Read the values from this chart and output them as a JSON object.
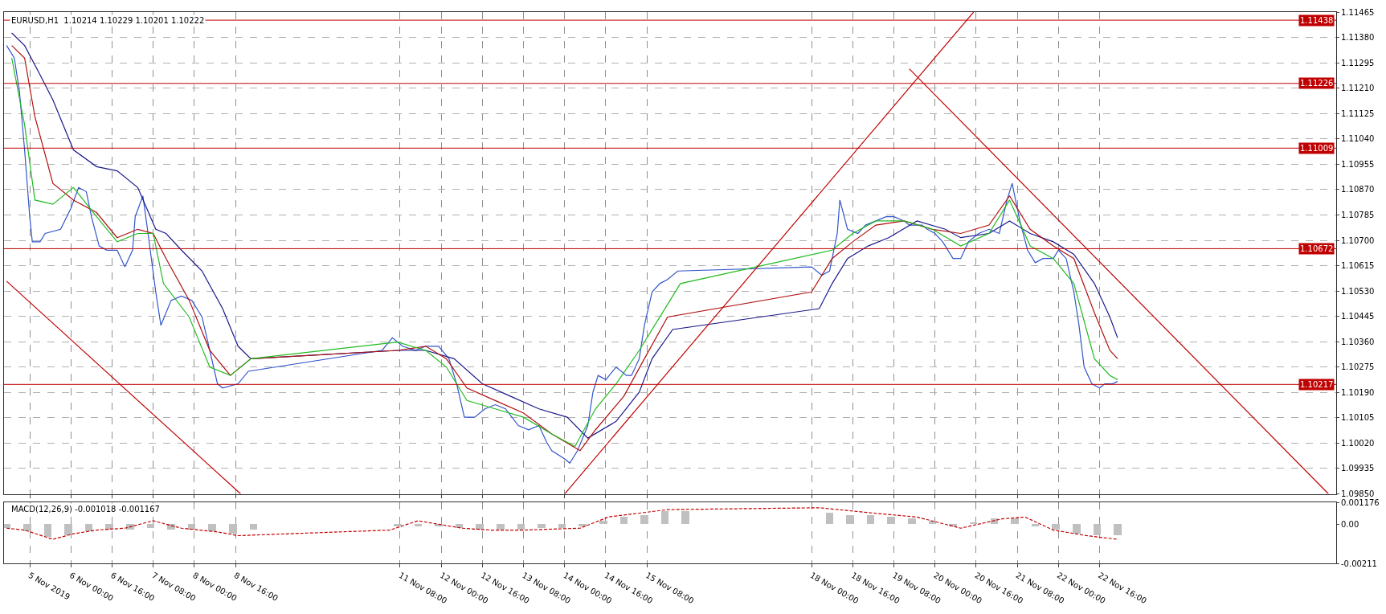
{
  "chart_data": [
    {
      "type": "line",
      "title": "EURUSD,H1  1.10214 1.10229 1.10201 1.10222",
      "grid": true,
      "tick_labels": "y",
      "xlim": [
        "2019-11-04T22:00",
        "2019-11-26T12:00"
      ],
      "xticks": [
        {
          "value": "2019-11-05T08:00",
          "label": null
        },
        {
          "value": "2019-11-06T00:00",
          "label": null
        },
        {
          "value": "2019-11-06T16:00",
          "label": null
        },
        {
          "value": "2019-11-07T08:00",
          "label": null
        },
        {
          "value": "2019-11-08T00:00",
          "label": null
        },
        {
          "value": "2019-11-08T16:00",
          "label": null
        },
        {
          "value": "2019-11-11T08:00",
          "label": null
        },
        {
          "value": "2019-11-12T00:00",
          "label": null
        },
        {
          "value": "2019-11-12T16:00",
          "label": null
        },
        {
          "value": "2019-11-13T08:00",
          "label": null
        },
        {
          "value": "2019-11-14T00:00",
          "label": null
        },
        {
          "value": "2019-11-14T16:00",
          "label": null
        },
        {
          "value": "2019-11-15T08:00",
          "label": null
        },
        {
          "value": "2019-11-18T00:00",
          "label": null
        },
        {
          "value": "2019-11-18T16:00",
          "label": null
        },
        {
          "value": "2019-11-19T08:00",
          "label": null
        },
        {
          "value": "2019-11-20T00:00",
          "label": null
        },
        {
          "value": "2019-11-20T16:00",
          "label": null
        },
        {
          "value": "2019-11-21T08:00",
          "label": null
        },
        {
          "value": "2019-11-22T00:00",
          "label": null
        },
        {
          "value": "2019-11-22T16:00",
          "label": null
        }
      ],
      "ylim": [
        1.0985,
        1.11465
      ],
      "yticks": [
        {
          "value": 1.11465,
          "label": "1.11465"
        },
        {
          "value": 1.1138,
          "label": "1.11380"
        },
        {
          "value": 1.11295,
          "label": "1.11295"
        },
        {
          "value": 1.1121,
          "label": "1.11210"
        },
        {
          "value": 1.11125,
          "label": "1.11125"
        },
        {
          "value": 1.1104,
          "label": "1.11040"
        },
        {
          "value": 1.10955,
          "label": "1.10955"
        },
        {
          "value": 1.1087,
          "label": "1.10870"
        },
        {
          "value": 1.10785,
          "label": "1.10785"
        },
        {
          "value": 1.107,
          "label": "1.10700"
        },
        {
          "value": 1.10615,
          "label": "1.10615"
        },
        {
          "value": 1.1053,
          "label": "1.10530"
        },
        {
          "value": 1.10445,
          "label": "1.10445"
        },
        {
          "value": 1.1036,
          "label": "1.10360"
        },
        {
          "value": 1.10275,
          "label": "1.10275"
        },
        {
          "value": 1.1019,
          "label": "1.10190"
        },
        {
          "value": 1.10105,
          "label": "1.10105"
        },
        {
          "value": 1.1002,
          "label": "1.10020"
        },
        {
          "value": 1.09935,
          "label": "1.09935"
        },
        {
          "value": 1.0985,
          "label": "1.09850"
        }
      ],
      "ref_lines": [
        {
          "axis": "y",
          "value": 1.11438,
          "label": "1.11438",
          "color": "#c00000"
        },
        {
          "axis": "y",
          "value": 1.11226,
          "label": "1.11226",
          "color": "#c00000"
        },
        {
          "axis": "y",
          "value": 1.11009,
          "label": "1.11009",
          "color": "#c00000"
        },
        {
          "axis": "y",
          "value": 1.10672,
          "label": "1.10672",
          "color": "#c00000"
        },
        {
          "axis": "y",
          "value": 1.10217,
          "label": "1.10217",
          "color": "#c00000"
        }
      ],
      "series": [
        {
          "color": "#3355cc",
          "x": [
            "2019-11-04T23:00",
            "2019-11-05T02:00",
            "2019-11-05T04:00",
            "2019-11-05T06:00",
            "2019-11-05T08:00",
            "2019-11-05T09:00",
            "2019-11-05T12:00",
            "2019-11-05T14:00",
            "2019-11-05T20:00",
            "2019-11-06T00:00",
            "2019-11-06T03:00",
            "2019-11-06T06:00",
            "2019-11-06T08:00",
            "2019-11-06T11:00",
            "2019-11-06T14:00",
            "2019-11-06T18:00",
            "2019-11-06T21:00",
            "2019-11-07T00:00",
            "2019-11-07T01:00",
            "2019-11-07T04:00",
            "2019-11-07T06:00",
            "2019-11-07T09:00",
            "2019-11-07T11:00",
            "2019-11-07T15:00",
            "2019-11-07T19:00",
            "2019-11-07T23:00",
            "2019-11-08T03:00",
            "2019-11-08T06:00",
            "2019-11-08T09:00",
            "2019-11-08T11:00",
            "2019-11-08T17:00",
            "2019-11-08T21:00",
            "2019-11-11T01:00",
            "2019-11-11T05:00",
            "2019-11-11T09:00",
            "2019-11-11T14:00",
            "2019-11-11T18:00",
            "2019-11-11T23:00",
            "2019-11-12T03:00",
            "2019-11-12T06:00",
            "2019-11-12T09:00",
            "2019-11-12T13:00",
            "2019-11-12T17:00",
            "2019-11-12T21:00",
            "2019-11-13T01:00",
            "2019-11-13T06:00",
            "2019-11-13T10:00",
            "2019-11-13T14:00",
            "2019-11-13T17:00",
            "2019-11-13T19:00",
            "2019-11-14T00:00",
            "2019-11-14T02:00",
            "2019-11-14T05:00",
            "2019-11-14T09:00",
            "2019-11-14T11:00",
            "2019-11-14T13:00",
            "2019-11-14T16:00",
            "2019-11-14T20:00",
            "2019-11-15T00:00",
            "2019-11-15T02:00",
            "2019-11-15T05:00",
            "2019-11-15T07:00",
            "2019-11-15T10:00",
            "2019-11-15T13:00",
            "2019-11-15T16:00",
            "2019-11-15T20:00",
            "2019-11-18T00:00",
            "2019-11-18T04:00",
            "2019-11-18T07:00",
            "2019-11-18T10:00",
            "2019-11-18T11:00",
            "2019-11-18T14:00",
            "2019-11-18T18:00",
            "2019-11-18T21:00",
            "2019-11-19T01:00",
            "2019-11-19T05:00",
            "2019-11-19T08:00",
            "2019-11-19T12:00",
            "2019-11-19T14:00",
            "2019-11-19T19:00",
            "2019-11-19T21:00",
            "2019-11-20T00:00",
            "2019-11-20T03:00",
            "2019-11-20T07:00",
            "2019-11-20T10:00",
            "2019-11-20T13:00",
            "2019-11-20T17:00",
            "2019-11-20T21:00",
            "2019-11-21T01:00",
            "2019-11-21T04:00",
            "2019-11-21T06:00",
            "2019-11-21T09:00",
            "2019-11-21T12:00",
            "2019-11-21T15:00",
            "2019-11-21T18:00",
            "2019-11-21T22:00",
            "2019-11-22T00:00",
            "2019-11-22T03:00",
            "2019-11-22T06:00",
            "2019-11-22T08:00",
            "2019-11-22T10:00",
            "2019-11-22T13:00",
            "2019-11-22T16:00",
            "2019-11-22T18:00",
            "2019-11-22T21:00",
            "2019-11-22T23:00"
          ],
          "values": [
            1.11353,
            1.11311,
            1.11199,
            1.11003,
            1.10779,
            1.10695,
            1.10695,
            1.10723,
            1.10737,
            1.10807,
            1.10877,
            1.10863,
            1.10779,
            1.10681,
            1.10667,
            1.10667,
            1.10611,
            1.10667,
            1.10779,
            1.10849,
            1.10723,
            1.10527,
            1.10415,
            1.10499,
            1.10513,
            1.10499,
            1.10443,
            1.10331,
            1.10219,
            1.10205,
            1.10219,
            1.10261,
            1.10331,
            1.10373,
            1.10345,
            1.10331,
            1.10345,
            1.10345,
            1.10303,
            1.10219,
            1.10107,
            1.10107,
            1.10135,
            1.10149,
            1.10135,
            1.10079,
            1.10065,
            1.10079,
            1.10023,
            1.09995,
            1.09967,
            1.09953,
            1.09995,
            1.10079,
            1.10191,
            1.10247,
            1.10233,
            1.10275,
            1.10247,
            1.10247,
            1.10303,
            1.10415,
            1.10527,
            1.10555,
            1.10569,
            1.10597,
            1.10611,
            1.10583,
            1.10597,
            1.10723,
            1.10835,
            1.10737,
            1.10723,
            1.10751,
            1.10765,
            1.10779,
            1.10779,
            1.10765,
            1.10751,
            1.10751,
            1.10737,
            1.10723,
            1.10695,
            1.10639,
            1.10639,
            1.10695,
            1.10723,
            1.10737,
            1.10723,
            1.10835,
            1.10891,
            1.10765,
            1.10667,
            1.10625,
            1.10639,
            1.10639,
            1.10667,
            1.10639,
            1.10527,
            1.10415,
            1.10275,
            1.10219,
            1.10205,
            1.10219,
            1.10219,
            1.10227
          ]
        },
        {
          "color": "#1a1a8c",
          "x": [
            "2019-11-05T01:00",
            "2019-11-05T06:00",
            "2019-11-05T12:00",
            "2019-11-05T17:00",
            "2019-11-06T01:00",
            "2019-11-06T10:00",
            "2019-11-06T18:00",
            "2019-11-07T02:00",
            "2019-11-07T09:00",
            "2019-11-07T13:00",
            "2019-11-07T19:00",
            "2019-11-08T03:00",
            "2019-11-08T11:00",
            "2019-11-08T17:00",
            "2019-11-08T22:00",
            "2019-11-11T07:00",
            "2019-11-11T18:00",
            "2019-11-12T05:00",
            "2019-11-12T16:00",
            "2019-11-13T03:00",
            "2019-11-13T14:00",
            "2019-11-14T01:00",
            "2019-11-14T09:00",
            "2019-11-14T20:00",
            "2019-11-15T05:00",
            "2019-11-15T10:00",
            "2019-11-15T18:00",
            "2019-11-18T03:00",
            "2019-11-18T08:00",
            "2019-11-18T14:00",
            "2019-11-18T22:00",
            "2019-11-19T06:00",
            "2019-11-19T17:00",
            "2019-11-20T04:00",
            "2019-11-20T10:00",
            "2019-11-20T21:00",
            "2019-11-21T05:00",
            "2019-11-21T13:00",
            "2019-11-21T22:00",
            "2019-11-22T06:00",
            "2019-11-22T14:00",
            "2019-11-22T20:00",
            "2019-11-22T23:00"
          ],
          "values": [
            1.11395,
            1.11353,
            1.11255,
            1.11171,
            1.11003,
            1.10947,
            1.10933,
            1.10877,
            1.10737,
            1.10723,
            1.10667,
            1.10597,
            1.10471,
            1.10345,
            1.10303,
            1.10331,
            1.10331,
            1.10303,
            1.10219,
            1.10177,
            1.10135,
            1.10107,
            1.10037,
            1.10093,
            1.10191,
            1.10303,
            1.10401,
            1.10471,
            1.10555,
            1.10639,
            1.10681,
            1.10709,
            1.10765,
            1.10737,
            1.10709,
            1.10723,
            1.10765,
            1.10723,
            1.10695,
            1.10653,
            1.10555,
            1.10443,
            1.10373
          ]
        },
        {
          "color": "#b01010",
          "x": [
            "2019-11-05T01:00",
            "2019-11-05T06:00",
            "2019-11-05T10:00",
            "2019-11-05T17:00",
            "2019-11-06T01:00",
            "2019-11-06T10:00",
            "2019-11-06T18:00",
            "2019-11-07T02:00",
            "2019-11-07T08:00",
            "2019-11-07T13:00",
            "2019-11-07T22:00",
            "2019-11-08T06:00",
            "2019-11-08T14:00",
            "2019-11-08T22:00",
            "2019-11-11T07:00",
            "2019-11-11T18:00",
            "2019-11-12T02:00",
            "2019-11-12T10:00",
            "2019-11-12T21:00",
            "2019-11-13T08:00",
            "2019-11-13T19:00",
            "2019-11-14T06:00",
            "2019-11-14T12:00",
            "2019-11-14T23:00",
            "2019-11-15T07:00",
            "2019-11-15T16:00",
            "2019-11-18T00:00",
            "2019-11-18T08:00",
            "2019-11-18T16:00",
            "2019-11-19T01:00",
            "2019-11-19T12:00",
            "2019-11-19T23:00",
            "2019-11-20T10:00",
            "2019-11-20T21:00",
            "2019-11-21T05:00",
            "2019-11-21T13:00",
            "2019-11-21T22:00",
            "2019-11-22T06:00",
            "2019-11-22T14:00",
            "2019-11-22T20:00",
            "2019-11-22T23:00"
          ],
          "values": [
            1.11353,
            1.11311,
            1.11115,
            1.10891,
            1.10835,
            1.10793,
            1.10709,
            1.10737,
            1.10723,
            1.10639,
            1.10499,
            1.10331,
            1.10247,
            1.10303,
            1.10331,
            1.10345,
            1.10303,
            1.10205,
            1.10163,
            1.10121,
            1.10051,
            1.09995,
            1.10065,
            1.10177,
            1.10303,
            1.10443,
            1.10527,
            1.10639,
            1.10695,
            1.10751,
            1.10765,
            1.10737,
            1.10723,
            1.10751,
            1.10849,
            1.10737,
            1.10681,
            1.10639,
            1.10457,
            1.10331,
            1.10303
          ]
        },
        {
          "color": "#22bb22",
          "x": [
            "2019-11-05T01:00",
            "2019-11-05T06:00",
            "2019-11-05T10:00",
            "2019-11-05T17:00",
            "2019-11-06T01:00",
            "2019-11-06T10:00",
            "2019-11-06T18:00",
            "2019-11-07T02:00",
            "2019-11-07T08:00",
            "2019-11-07T12:00",
            "2019-11-07T22:00",
            "2019-11-08T06:00",
            "2019-11-08T14:00",
            "2019-11-08T22:00",
            "2019-11-11T07:00",
            "2019-11-11T18:00",
            "2019-11-12T02:00",
            "2019-11-12T10:00",
            "2019-11-12T21:00",
            "2019-11-13T08:00",
            "2019-11-13T19:00",
            "2019-11-14T04:00",
            "2019-11-14T12:00",
            "2019-11-14T20:00",
            "2019-11-15T05:00",
            "2019-11-15T13:00",
            "2019-11-15T21:00",
            "2019-11-18T08:00",
            "2019-11-18T16:00",
            "2019-11-19T01:00",
            "2019-11-19T12:00",
            "2019-11-19T23:00",
            "2019-11-20T10:00",
            "2019-11-20T21:00",
            "2019-11-21T05:00",
            "2019-11-21T13:00",
            "2019-11-21T22:00",
            "2019-11-22T06:00",
            "2019-11-22T14:00",
            "2019-11-22T20:00",
            "2019-11-22T23:00"
          ],
          "values": [
            1.11311,
            1.11087,
            1.10835,
            1.10821,
            1.10877,
            1.10779,
            1.10695,
            1.10723,
            1.10723,
            1.10555,
            1.10443,
            1.10275,
            1.10247,
            1.10303,
            1.10359,
            1.10331,
            1.10275,
            1.10163,
            1.10135,
            1.10107,
            1.10051,
            1.10009,
            1.10135,
            1.10219,
            1.10331,
            1.10443,
            1.10555,
            1.10667,
            1.10723,
            1.10765,
            1.10765,
            1.10737,
            1.10681,
            1.10723,
            1.10835,
            1.10681,
            1.10639,
            1.10555,
            1.10303,
            1.10247,
            1.10233
          ]
        },
        {
          "color": "#c00000",
          "x": [
            "2019-11-04T23:00",
            "2019-11-08T18:00"
          ],
          "values": [
            1.10563,
            1.0985
          ]
        },
        {
          "color": "#c00000",
          "x": [
            "2019-11-14T00:00",
            "2019-11-20T15:00"
          ],
          "values": [
            1.0985,
            1.11465
          ]
        },
        {
          "color": "#c00000",
          "x": [
            "2019-11-19T14:00",
            "2019-11-26T09:00"
          ],
          "values": [
            1.11275,
            1.0985
          ]
        }
      ]
    },
    {
      "type": "bar",
      "title": "MACD(12,26,9) -0.001018 -0.001167",
      "grid": "x",
      "xlim": [
        "2019-11-04T22:00",
        "2019-11-26T12:00"
      ],
      "xticks": [
        {
          "value": "2019-11-05T08:00",
          "label": "5 Nov 2019"
        },
        {
          "value": "2019-11-06T00:00",
          "label": "6 Nov 00:00"
        },
        {
          "value": "2019-11-06T16:00",
          "label": "6 Nov 16:00"
        },
        {
          "value": "2019-11-07T08:00",
          "label": "7 Nov 08:00"
        },
        {
          "value": "2019-11-08T00:00",
          "label": "8 Nov 00:00"
        },
        {
          "value": "2019-11-08T16:00",
          "label": "8 Nov 16:00"
        },
        {
          "value": "2019-11-11T08:00",
          "label": "11 Nov 08:00"
        },
        {
          "value": "2019-11-12T00:00",
          "label": "12 Nov 00:00"
        },
        {
          "value": "2019-11-12T16:00",
          "label": "12 Nov 16:00"
        },
        {
          "value": "2019-11-13T08:00",
          "label": "13 Nov 08:00"
        },
        {
          "value": "2019-11-14T00:00",
          "label": "14 Nov 00:00"
        },
        {
          "value": "2019-11-14T16:00",
          "label": "14 Nov 16:00"
        },
        {
          "value": "2019-11-15T08:00",
          "label": "15 Nov 08:00"
        },
        {
          "value": "2019-11-18T00:00",
          "label": "18 Nov 00:00"
        },
        {
          "value": "2019-11-18T16:00",
          "label": "18 Nov 16:00"
        },
        {
          "value": "2019-11-19T08:00",
          "label": "19 Nov 08:00"
        },
        {
          "value": "2019-11-20T00:00",
          "label": "20 Nov 00:00"
        },
        {
          "value": "2019-11-20T16:00",
          "label": "20 Nov 16:00"
        },
        {
          "value": "2019-11-21T08:00",
          "label": "21 Nov 08:00"
        },
        {
          "value": "2019-11-22T00:00",
          "label": "22 Nov 00:00"
        },
        {
          "value": "2019-11-22T16:00",
          "label": "22 Nov 16:00"
        }
      ],
      "ylim": [
        -0.00211,
        0.001176
      ],
      "yticks": [
        {
          "value": 0.001176,
          "label": "0.001176"
        },
        {
          "value": 0,
          "label": "0.00"
        },
        {
          "value": -0.00211,
          "label": "-0.00211"
        }
      ],
      "series": [
        {
          "color": "#c0c0c0",
          "x": [
            "2019-11-04T23:00",
            "2019-11-05T07:00",
            "2019-11-05T15:00",
            "2019-11-05T23:00",
            "2019-11-06T07:00",
            "2019-11-06T15:00",
            "2019-11-06T23:00",
            "2019-11-07T07:00",
            "2019-11-07T15:00",
            "2019-11-07T23:00",
            "2019-11-08T07:00",
            "2019-11-08T15:00",
            "2019-11-08T23:00",
            "2019-11-11T07:00",
            "2019-11-11T15:00",
            "2019-11-11T23:00",
            "2019-11-12T07:00",
            "2019-11-12T15:00",
            "2019-11-12T23:00",
            "2019-11-13T07:00",
            "2019-11-13T15:00",
            "2019-11-13T23:00",
            "2019-11-14T07:00",
            "2019-11-14T15:00",
            "2019-11-14T23:00",
            "2019-11-15T07:00",
            "2019-11-15T15:00",
            "2019-11-15T23:00",
            "2019-11-18T07:00",
            "2019-11-18T15:00",
            "2019-11-18T23:00",
            "2019-11-19T07:00",
            "2019-11-19T15:00",
            "2019-11-19T23:00",
            "2019-11-20T07:00",
            "2019-11-20T15:00",
            "2019-11-20T23:00",
            "2019-11-21T07:00",
            "2019-11-21T15:00",
            "2019-11-21T23:00",
            "2019-11-22T07:00",
            "2019-11-22T15:00",
            "2019-11-22T23:00"
          ],
          "values": [
            -0.0002,
            -0.0004,
            -0.0007,
            -0.0006,
            -0.0004,
            -0.0003,
            -0.0003,
            -0.0002,
            -0.0003,
            -0.0003,
            -0.0004,
            -0.0005,
            -0.0003,
            -0.0001,
            -0.0001,
            -0.0001,
            -0.0002,
            -0.0003,
            -0.0003,
            -0.0003,
            -0.0002,
            -0.0002,
            -0.0001,
            0.0002,
            0.0004,
            0.0005,
            0.0007,
            0.0007,
            0.0006,
            0.0005,
            0.0005,
            0.0004,
            0.0003,
            0.0002,
            -0.0001,
            0.0001,
            0.0003,
            0.0003,
            -0.0001,
            -0.0003,
            -0.0005,
            -0.0006,
            -0.0006
          ]
        },
        {
          "type": "line",
          "line_style": "dashed",
          "color": "#c00000",
          "x": [
            "2019-11-04T23:00",
            "2019-11-05T06:00",
            "2019-11-05T17:00",
            "2019-11-06T01:00",
            "2019-11-06T10:00",
            "2019-11-06T21:00",
            "2019-11-07T08:00",
            "2019-11-07T19:00",
            "2019-11-08T09:00",
            "2019-11-08T17:00",
            "2019-11-11T04:00",
            "2019-11-11T15:00",
            "2019-11-12T08:00",
            "2019-11-12T19:00",
            "2019-11-13T08:00",
            "2019-11-14T06:00",
            "2019-11-14T17:00",
            "2019-11-15T16:00",
            "2019-11-18T03:00",
            "2019-11-19T01:00",
            "2019-11-19T17:00",
            "2019-11-20T10:00",
            "2019-11-21T02:00",
            "2019-11-21T11:00",
            "2019-11-21T22:00",
            "2019-11-22T11:00",
            "2019-11-22T23:00"
          ],
          "values": [
            -0.0002,
            -0.0003,
            -0.0008,
            -0.0005,
            -0.0003,
            -0.0002,
            0.0002,
            -0.0002,
            -0.0004,
            -0.0006,
            -0.0003,
            0.0002,
            -0.0002,
            -0.0003,
            -0.0003,
            -0.0002,
            0.0004,
            0.0008,
            0.0009,
            0.0006,
            0.0004,
            -0.0002,
            0.0003,
            0.0004,
            -0.0003,
            -0.0006,
            -0.0008
          ]
        }
      ]
    }
  ]
}
